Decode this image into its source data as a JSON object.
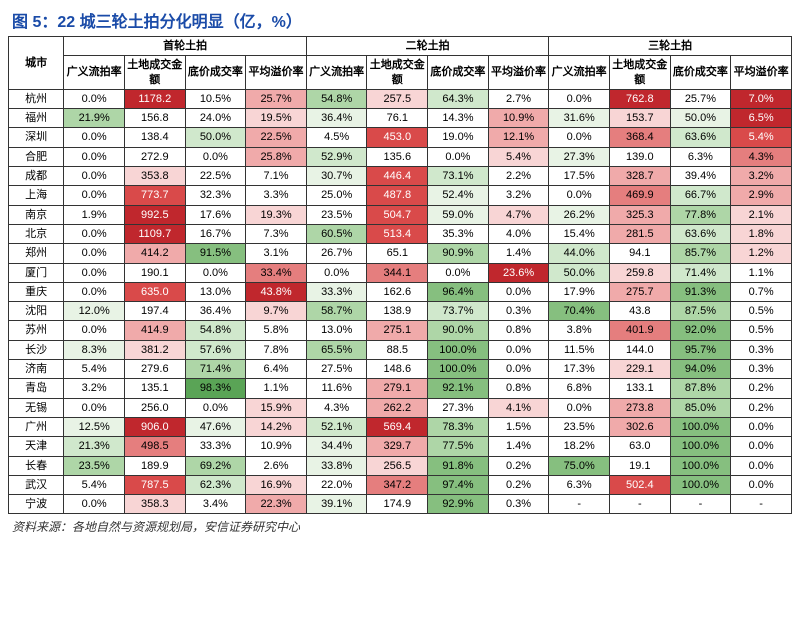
{
  "title": "图 5：22 城三轮土拍分化明显（亿，%）",
  "source": "资料来源：各地自然与资源规划局，安信证券研究中心",
  "headers": {
    "city": "城市",
    "groups": [
      "首轮土拍",
      "二轮土拍",
      "三轮土拍"
    ],
    "cols": [
      "广义流拍率",
      "土地成交金额",
      "底价成交率",
      "平均溢价率"
    ]
  },
  "colors": {
    "red5": "#c0272d",
    "red4": "#d94a4a",
    "red3": "#e57e7e",
    "red2": "#f0aaaa",
    "red1": "#f8d5d5",
    "grn5": "#5aa456",
    "grn4": "#86bf7f",
    "grn3": "#aed6a7",
    "grn2": "#d0e8cc",
    "grn1": "#e8f3e5",
    "none": "#ffffff"
  },
  "rows": [
    {
      "city": "杭州",
      "cells": [
        {
          "v": "0.0%",
          "c": "none"
        },
        {
          "v": "1178.2",
          "c": "red5"
        },
        {
          "v": "10.5%",
          "c": "none"
        },
        {
          "v": "25.7%",
          "c": "red2"
        },
        {
          "v": "54.8%",
          "c": "grn3"
        },
        {
          "v": "257.5",
          "c": "red1"
        },
        {
          "v": "64.3%",
          "c": "grn2"
        },
        {
          "v": "2.7%",
          "c": "none"
        },
        {
          "v": "0.0%",
          "c": "none"
        },
        {
          "v": "762.8",
          "c": "red5"
        },
        {
          "v": "25.7%",
          "c": "none"
        },
        {
          "v": "7.0%",
          "c": "red5"
        }
      ]
    },
    {
      "city": "福州",
      "cells": [
        {
          "v": "21.9%",
          "c": "grn3"
        },
        {
          "v": "156.8",
          "c": "none"
        },
        {
          "v": "24.0%",
          "c": "none"
        },
        {
          "v": "19.5%",
          "c": "red1"
        },
        {
          "v": "36.4%",
          "c": "grn1"
        },
        {
          "v": "76.1",
          "c": "none"
        },
        {
          "v": "14.3%",
          "c": "none"
        },
        {
          "v": "10.9%",
          "c": "red2"
        },
        {
          "v": "31.6%",
          "c": "grn1"
        },
        {
          "v": "153.7",
          "c": "red1"
        },
        {
          "v": "50.0%",
          "c": "grn1"
        },
        {
          "v": "6.5%",
          "c": "red5"
        }
      ]
    },
    {
      "city": "深圳",
      "cells": [
        {
          "v": "0.0%",
          "c": "none"
        },
        {
          "v": "138.4",
          "c": "none"
        },
        {
          "v": "50.0%",
          "c": "grn2"
        },
        {
          "v": "22.5%",
          "c": "red2"
        },
        {
          "v": "4.5%",
          "c": "none"
        },
        {
          "v": "453.0",
          "c": "red4"
        },
        {
          "v": "19.0%",
          "c": "none"
        },
        {
          "v": "12.1%",
          "c": "red2"
        },
        {
          "v": "0.0%",
          "c": "none"
        },
        {
          "v": "368.4",
          "c": "red3"
        },
        {
          "v": "63.6%",
          "c": "grn2"
        },
        {
          "v": "5.4%",
          "c": "red4"
        }
      ]
    },
    {
      "city": "合肥",
      "cells": [
        {
          "v": "0.0%",
          "c": "none"
        },
        {
          "v": "272.9",
          "c": "none"
        },
        {
          "v": "0.0%",
          "c": "none"
        },
        {
          "v": "25.8%",
          "c": "red2"
        },
        {
          "v": "52.9%",
          "c": "grn2"
        },
        {
          "v": "135.6",
          "c": "none"
        },
        {
          "v": "0.0%",
          "c": "none"
        },
        {
          "v": "5.4%",
          "c": "red1"
        },
        {
          "v": "27.3%",
          "c": "grn1"
        },
        {
          "v": "139.0",
          "c": "none"
        },
        {
          "v": "6.3%",
          "c": "none"
        },
        {
          "v": "4.3%",
          "c": "red3"
        }
      ]
    },
    {
      "city": "成都",
      "cells": [
        {
          "v": "0.0%",
          "c": "none"
        },
        {
          "v": "353.8",
          "c": "red1"
        },
        {
          "v": "22.5%",
          "c": "none"
        },
        {
          "v": "7.1%",
          "c": "none"
        },
        {
          "v": "30.7%",
          "c": "grn1"
        },
        {
          "v": "446.4",
          "c": "red4"
        },
        {
          "v": "73.1%",
          "c": "grn2"
        },
        {
          "v": "2.2%",
          "c": "none"
        },
        {
          "v": "17.5%",
          "c": "none"
        },
        {
          "v": "328.7",
          "c": "red2"
        },
        {
          "v": "39.4%",
          "c": "none"
        },
        {
          "v": "3.2%",
          "c": "red2"
        }
      ]
    },
    {
      "city": "上海",
      "cells": [
        {
          "v": "0.0%",
          "c": "none"
        },
        {
          "v": "773.7",
          "c": "red4"
        },
        {
          "v": "32.3%",
          "c": "none"
        },
        {
          "v": "3.3%",
          "c": "none"
        },
        {
          "v": "25.0%",
          "c": "none"
        },
        {
          "v": "487.8",
          "c": "red4"
        },
        {
          "v": "52.4%",
          "c": "grn1"
        },
        {
          "v": "3.2%",
          "c": "none"
        },
        {
          "v": "0.0%",
          "c": "none"
        },
        {
          "v": "469.9",
          "c": "red3"
        },
        {
          "v": "66.7%",
          "c": "grn2"
        },
        {
          "v": "2.9%",
          "c": "red2"
        }
      ]
    },
    {
      "city": "南京",
      "cells": [
        {
          "v": "1.9%",
          "c": "none"
        },
        {
          "v": "992.5",
          "c": "red5"
        },
        {
          "v": "17.6%",
          "c": "none"
        },
        {
          "v": "19.3%",
          "c": "red1"
        },
        {
          "v": "23.5%",
          "c": "none"
        },
        {
          "v": "504.7",
          "c": "red4"
        },
        {
          "v": "59.0%",
          "c": "grn1"
        },
        {
          "v": "4.7%",
          "c": "red1"
        },
        {
          "v": "26.2%",
          "c": "grn1"
        },
        {
          "v": "325.3",
          "c": "red2"
        },
        {
          "v": "77.8%",
          "c": "grn3"
        },
        {
          "v": "2.1%",
          "c": "red1"
        }
      ]
    },
    {
      "city": "北京",
      "cells": [
        {
          "v": "0.0%",
          "c": "none"
        },
        {
          "v": "1109.7",
          "c": "red5"
        },
        {
          "v": "16.7%",
          "c": "none"
        },
        {
          "v": "7.3%",
          "c": "none"
        },
        {
          "v": "60.5%",
          "c": "grn3"
        },
        {
          "v": "513.4",
          "c": "red4"
        },
        {
          "v": "35.3%",
          "c": "none"
        },
        {
          "v": "4.0%",
          "c": "none"
        },
        {
          "v": "15.4%",
          "c": "none"
        },
        {
          "v": "281.5",
          "c": "red2"
        },
        {
          "v": "63.6%",
          "c": "grn2"
        },
        {
          "v": "1.8%",
          "c": "red1"
        }
      ]
    },
    {
      "city": "郑州",
      "cells": [
        {
          "v": "0.0%",
          "c": "none"
        },
        {
          "v": "414.2",
          "c": "red2"
        },
        {
          "v": "91.5%",
          "c": "grn4"
        },
        {
          "v": "3.1%",
          "c": "none"
        },
        {
          "v": "26.7%",
          "c": "none"
        },
        {
          "v": "65.1",
          "c": "none"
        },
        {
          "v": "90.9%",
          "c": "grn3"
        },
        {
          "v": "1.4%",
          "c": "none"
        },
        {
          "v": "44.0%",
          "c": "grn2"
        },
        {
          "v": "94.1",
          "c": "none"
        },
        {
          "v": "85.7%",
          "c": "grn3"
        },
        {
          "v": "1.2%",
          "c": "red1"
        }
      ]
    },
    {
      "city": "厦门",
      "cells": [
        {
          "v": "0.0%",
          "c": "none"
        },
        {
          "v": "190.1",
          "c": "none"
        },
        {
          "v": "0.0%",
          "c": "none"
        },
        {
          "v": "33.4%",
          "c": "red3"
        },
        {
          "v": "0.0%",
          "c": "none"
        },
        {
          "v": "344.1",
          "c": "red3"
        },
        {
          "v": "0.0%",
          "c": "none"
        },
        {
          "v": "23.6%",
          "c": "red5"
        },
        {
          "v": "50.0%",
          "c": "grn2"
        },
        {
          "v": "259.8",
          "c": "red1"
        },
        {
          "v": "71.4%",
          "c": "grn2"
        },
        {
          "v": "1.1%",
          "c": "none"
        }
      ]
    },
    {
      "city": "重庆",
      "cells": [
        {
          "v": "0.0%",
          "c": "none"
        },
        {
          "v": "635.0",
          "c": "red4"
        },
        {
          "v": "13.0%",
          "c": "none"
        },
        {
          "v": "43.8%",
          "c": "red5"
        },
        {
          "v": "33.3%",
          "c": "grn1"
        },
        {
          "v": "162.6",
          "c": "none"
        },
        {
          "v": "96.4%",
          "c": "grn4"
        },
        {
          "v": "0.0%",
          "c": "none"
        },
        {
          "v": "17.9%",
          "c": "none"
        },
        {
          "v": "275.7",
          "c": "red2"
        },
        {
          "v": "91.3%",
          "c": "grn4"
        },
        {
          "v": "0.7%",
          "c": "none"
        }
      ]
    },
    {
      "city": "沈阳",
      "cells": [
        {
          "v": "12.0%",
          "c": "grn1"
        },
        {
          "v": "197.4",
          "c": "none"
        },
        {
          "v": "36.4%",
          "c": "none"
        },
        {
          "v": "9.7%",
          "c": "red1"
        },
        {
          "v": "58.7%",
          "c": "grn3"
        },
        {
          "v": "138.9",
          "c": "none"
        },
        {
          "v": "73.7%",
          "c": "grn2"
        },
        {
          "v": "0.3%",
          "c": "none"
        },
        {
          "v": "70.4%",
          "c": "grn4"
        },
        {
          "v": "43.8",
          "c": "none"
        },
        {
          "v": "87.5%",
          "c": "grn3"
        },
        {
          "v": "0.5%",
          "c": "none"
        }
      ]
    },
    {
      "city": "苏州",
      "cells": [
        {
          "v": "0.0%",
          "c": "none"
        },
        {
          "v": "414.9",
          "c": "red2"
        },
        {
          "v": "54.8%",
          "c": "grn2"
        },
        {
          "v": "5.8%",
          "c": "none"
        },
        {
          "v": "13.0%",
          "c": "none"
        },
        {
          "v": "275.1",
          "c": "red2"
        },
        {
          "v": "90.0%",
          "c": "grn3"
        },
        {
          "v": "0.8%",
          "c": "none"
        },
        {
          "v": "3.8%",
          "c": "none"
        },
        {
          "v": "401.9",
          "c": "red3"
        },
        {
          "v": "92.0%",
          "c": "grn4"
        },
        {
          "v": "0.5%",
          "c": "none"
        }
      ]
    },
    {
      "city": "长沙",
      "cells": [
        {
          "v": "8.3%",
          "c": "grn1"
        },
        {
          "v": "381.2",
          "c": "red1"
        },
        {
          "v": "57.6%",
          "c": "grn2"
        },
        {
          "v": "7.8%",
          "c": "none"
        },
        {
          "v": "65.5%",
          "c": "grn3"
        },
        {
          "v": "88.5",
          "c": "none"
        },
        {
          "v": "100.0%",
          "c": "grn4"
        },
        {
          "v": "0.0%",
          "c": "none"
        },
        {
          "v": "11.5%",
          "c": "none"
        },
        {
          "v": "144.0",
          "c": "none"
        },
        {
          "v": "95.7%",
          "c": "grn4"
        },
        {
          "v": "0.3%",
          "c": "none"
        }
      ]
    },
    {
      "city": "济南",
      "cells": [
        {
          "v": "5.4%",
          "c": "none"
        },
        {
          "v": "279.6",
          "c": "none"
        },
        {
          "v": "71.4%",
          "c": "grn3"
        },
        {
          "v": "6.4%",
          "c": "none"
        },
        {
          "v": "27.5%",
          "c": "none"
        },
        {
          "v": "148.6",
          "c": "none"
        },
        {
          "v": "100.0%",
          "c": "grn4"
        },
        {
          "v": "0.0%",
          "c": "none"
        },
        {
          "v": "17.3%",
          "c": "none"
        },
        {
          "v": "229.1",
          "c": "red1"
        },
        {
          "v": "94.0%",
          "c": "grn4"
        },
        {
          "v": "0.3%",
          "c": "none"
        }
      ]
    },
    {
      "city": "青岛",
      "cells": [
        {
          "v": "3.2%",
          "c": "none"
        },
        {
          "v": "135.1",
          "c": "none"
        },
        {
          "v": "98.3%",
          "c": "grn5"
        },
        {
          "v": "1.1%",
          "c": "none"
        },
        {
          "v": "11.6%",
          "c": "none"
        },
        {
          "v": "279.1",
          "c": "red2"
        },
        {
          "v": "92.1%",
          "c": "grn4"
        },
        {
          "v": "0.8%",
          "c": "none"
        },
        {
          "v": "6.8%",
          "c": "none"
        },
        {
          "v": "133.1",
          "c": "none"
        },
        {
          "v": "87.8%",
          "c": "grn3"
        },
        {
          "v": "0.2%",
          "c": "none"
        }
      ]
    },
    {
      "city": "无锡",
      "cells": [
        {
          "v": "0.0%",
          "c": "none"
        },
        {
          "v": "256.0",
          "c": "none"
        },
        {
          "v": "0.0%",
          "c": "none"
        },
        {
          "v": "15.9%",
          "c": "red1"
        },
        {
          "v": "4.3%",
          "c": "none"
        },
        {
          "v": "262.2",
          "c": "red2"
        },
        {
          "v": "27.3%",
          "c": "none"
        },
        {
          "v": "4.1%",
          "c": "red1"
        },
        {
          "v": "0.0%",
          "c": "none"
        },
        {
          "v": "273.8",
          "c": "red2"
        },
        {
          "v": "85.0%",
          "c": "grn3"
        },
        {
          "v": "0.2%",
          "c": "none"
        }
      ]
    },
    {
      "city": "广州",
      "cells": [
        {
          "v": "12.5%",
          "c": "grn1"
        },
        {
          "v": "906.0",
          "c": "red5"
        },
        {
          "v": "47.6%",
          "c": "grn1"
        },
        {
          "v": "14.2%",
          "c": "red1"
        },
        {
          "v": "52.1%",
          "c": "grn2"
        },
        {
          "v": "569.4",
          "c": "red5"
        },
        {
          "v": "78.3%",
          "c": "grn3"
        },
        {
          "v": "1.5%",
          "c": "none"
        },
        {
          "v": "23.5%",
          "c": "none"
        },
        {
          "v": "302.6",
          "c": "red2"
        },
        {
          "v": "100.0%",
          "c": "grn4"
        },
        {
          "v": "0.0%",
          "c": "none"
        }
      ]
    },
    {
      "city": "天津",
      "cells": [
        {
          "v": "21.3%",
          "c": "grn2"
        },
        {
          "v": "498.5",
          "c": "red3"
        },
        {
          "v": "33.3%",
          "c": "none"
        },
        {
          "v": "10.9%",
          "c": "none"
        },
        {
          "v": "34.4%",
          "c": "grn1"
        },
        {
          "v": "329.7",
          "c": "red2"
        },
        {
          "v": "77.5%",
          "c": "grn3"
        },
        {
          "v": "1.4%",
          "c": "none"
        },
        {
          "v": "18.2%",
          "c": "none"
        },
        {
          "v": "63.0",
          "c": "none"
        },
        {
          "v": "100.0%",
          "c": "grn4"
        },
        {
          "v": "0.0%",
          "c": "none"
        }
      ]
    },
    {
      "city": "长春",
      "cells": [
        {
          "v": "23.5%",
          "c": "grn3"
        },
        {
          "v": "189.9",
          "c": "none"
        },
        {
          "v": "69.2%",
          "c": "grn3"
        },
        {
          "v": "2.6%",
          "c": "none"
        },
        {
          "v": "33.8%",
          "c": "grn1"
        },
        {
          "v": "256.5",
          "c": "red1"
        },
        {
          "v": "91.8%",
          "c": "grn4"
        },
        {
          "v": "0.2%",
          "c": "none"
        },
        {
          "v": "75.0%",
          "c": "grn4"
        },
        {
          "v": "19.1",
          "c": "none"
        },
        {
          "v": "100.0%",
          "c": "grn4"
        },
        {
          "v": "0.0%",
          "c": "none"
        }
      ]
    },
    {
      "city": "武汉",
      "cells": [
        {
          "v": "5.4%",
          "c": "none"
        },
        {
          "v": "787.5",
          "c": "red4"
        },
        {
          "v": "62.3%",
          "c": "grn2"
        },
        {
          "v": "16.9%",
          "c": "red1"
        },
        {
          "v": "22.0%",
          "c": "none"
        },
        {
          "v": "347.2",
          "c": "red3"
        },
        {
          "v": "97.4%",
          "c": "grn4"
        },
        {
          "v": "0.2%",
          "c": "none"
        },
        {
          "v": "6.3%",
          "c": "none"
        },
        {
          "v": "502.4",
          "c": "red4"
        },
        {
          "v": "100.0%",
          "c": "grn4"
        },
        {
          "v": "0.0%",
          "c": "none"
        }
      ]
    },
    {
      "city": "宁波",
      "cells": [
        {
          "v": "0.0%",
          "c": "none"
        },
        {
          "v": "358.3",
          "c": "red1"
        },
        {
          "v": "3.4%",
          "c": "none"
        },
        {
          "v": "22.3%",
          "c": "red2"
        },
        {
          "v": "39.1%",
          "c": "grn1"
        },
        {
          "v": "174.9",
          "c": "none"
        },
        {
          "v": "92.9%",
          "c": "grn4"
        },
        {
          "v": "0.3%",
          "c": "none"
        },
        {
          "v": "-",
          "c": "none"
        },
        {
          "v": "-",
          "c": "none"
        },
        {
          "v": "-",
          "c": "none"
        },
        {
          "v": "-",
          "c": "none"
        }
      ]
    }
  ]
}
